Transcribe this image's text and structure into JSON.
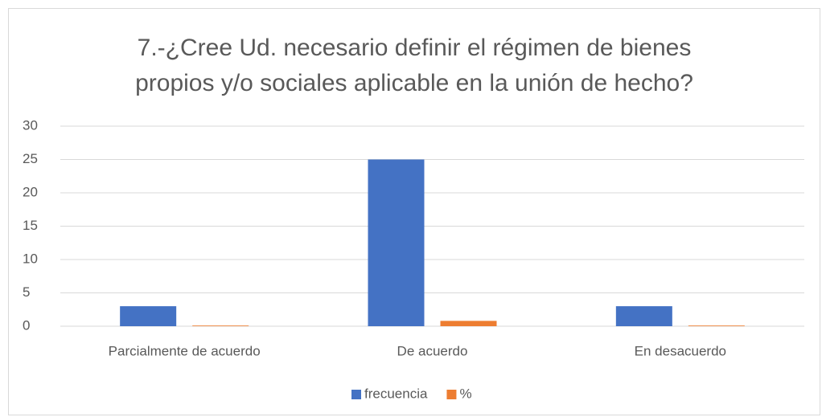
{
  "chart_data": {
    "type": "bar",
    "title": "7.-¿Cree Ud. necesario definir el régimen de bienes\npropios y/o sociales aplicable en la unión de hecho?",
    "categories": [
      "Parcialmente de acuerdo",
      "De acuerdo",
      "En desacuerdo"
    ],
    "series": [
      {
        "name": "frecuencia",
        "color": "#4472c4",
        "values": [
          3,
          25,
          3
        ]
      },
      {
        "name": "%",
        "color": "#ed7d31",
        "values": [
          0.1,
          0.8,
          0.1
        ]
      }
    ],
    "ylim": [
      0,
      30
    ],
    "yticks": [
      0,
      5,
      10,
      15,
      20,
      25,
      30
    ],
    "grid": true,
    "legend": "bottom"
  }
}
